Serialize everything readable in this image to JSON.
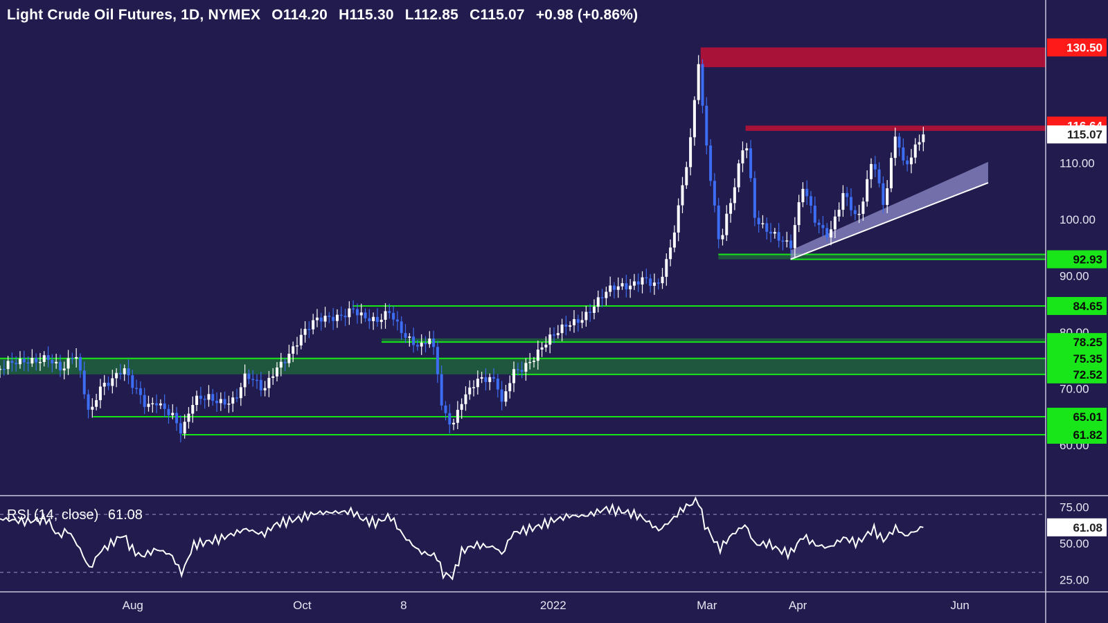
{
  "header": {
    "symbol": "Light Crude Oil Futures, 1D, NYMEX",
    "open": "O114.20",
    "high": "H115.30",
    "low": "L112.85",
    "close": "C115.07",
    "change": "+0.98 (+0.86%)"
  },
  "rsi_header": {
    "label": "RSI (14, close)",
    "value": "61.08"
  },
  "colors": {
    "background": "#211b4e",
    "up_candle": "#ffffff",
    "down_candle": "#3d6df2",
    "support": "#19e619",
    "resistance": "#ff1a1a",
    "resistance_zone": "#a81238",
    "support_zone": "#1f6b3a",
    "channel": "#8f8cc9"
  },
  "chart_data": [
    {
      "type": "candlestick",
      "title": "Light Crude Oil Futures, 1D, NYMEX",
      "x_tick_labels": [
        "Aug",
        "Oct",
        "8",
        "2022",
        "Mar",
        "Apr",
        "Jun"
      ],
      "y_tick_labels": [
        "110.00",
        "100.00",
        "90.00",
        "80.00",
        "70.00",
        "60.00"
      ],
      "y_ticks": [
        110,
        100,
        90,
        80,
        70,
        60
      ],
      "x_range": [
        0,
        100
      ],
      "ylim": [
        52,
        134
      ],
      "last_price": 115.07,
      "price_tags": [
        {
          "value": 130.5,
          "label": "130.50",
          "kind": "resistance"
        },
        {
          "value": 116.64,
          "label": "116.64",
          "kind": "resistance"
        },
        {
          "value": 115.07,
          "label": "115.07",
          "kind": "last"
        },
        {
          "value": 92.93,
          "label": "92.93",
          "kind": "support"
        },
        {
          "value": 84.65,
          "label": "84.65",
          "kind": "support"
        },
        {
          "value": 78.25,
          "label": "78.25",
          "kind": "support"
        },
        {
          "value": 75.35,
          "label": "75.35",
          "kind": "support"
        },
        {
          "value": 72.52,
          "label": "72.52",
          "kind": "support"
        },
        {
          "value": 65.01,
          "label": "65.01",
          "kind": "support"
        },
        {
          "value": 61.82,
          "label": "61.82",
          "kind": "support"
        }
      ],
      "resistance_zones": [
        {
          "from_x": 67,
          "y_top": 130.5,
          "y_bottom": 127.0
        },
        {
          "from_x": 71.3,
          "y_top": 116.64,
          "y_bottom": 115.7
        }
      ],
      "support_lines": [
        {
          "from_x": 68.7,
          "value": 93.8
        },
        {
          "from_x": 75.6,
          "value": 92.93
        },
        {
          "from_x": 33.7,
          "value": 84.65
        },
        {
          "from_x": 36.5,
          "value": 78.25
        },
        {
          "from_x": 0,
          "value": 75.35
        },
        {
          "from_x": 48.9,
          "value": 72.52
        },
        {
          "from_x": 8.9,
          "value": 65.01
        },
        {
          "from_x": 17.4,
          "value": 61.82
        }
      ],
      "support_zones": [
        {
          "from_x": 0,
          "y_top": 75.35,
          "y_bottom": 72.52
        },
        {
          "from_x": 68.7,
          "y_top": 93.8,
          "y_bottom": 92.93
        },
        {
          "from_x": 36.5,
          "y_top": 78.9,
          "y_bottom": 78.25
        }
      ],
      "channel": {
        "x1": 75.6,
        "y1_low": 92.93,
        "y1_high": 94.5,
        "x2": 94.5,
        "y2_low": 106.5,
        "y2_high": 110.2
      },
      "price_path": [
        [
          0,
          73.5
        ],
        [
          2,
          74.0
        ],
        [
          4.5,
          76.5
        ],
        [
          6,
          73.0
        ],
        [
          7.2,
          75.5
        ],
        [
          8.6,
          65.01
        ],
        [
          9.5,
          71.0
        ],
        [
          11.8,
          73.3
        ],
        [
          12.6,
          70.0
        ],
        [
          14.0,
          66.5
        ],
        [
          15.0,
          68.3
        ],
        [
          16.4,
          66.2
        ],
        [
          17.4,
          61.82
        ],
        [
          18.5,
          67.0
        ],
        [
          20.0,
          68.5
        ],
        [
          22.5,
          68.3
        ],
        [
          23.5,
          71.8
        ],
        [
          25.2,
          69.2
        ],
        [
          26.3,
          74.0
        ],
        [
          28.5,
          78.5
        ],
        [
          30.3,
          81.5
        ],
        [
          32.0,
          83.2
        ],
        [
          33.7,
          84.65
        ],
        [
          34.8,
          82.0
        ],
        [
          36.0,
          81.0
        ],
        [
          37.3,
          84.0
        ],
        [
          38.6,
          80.5
        ],
        [
          40.2,
          77.0
        ],
        [
          41.2,
          78.25
        ],
        [
          41.8,
          73.0
        ],
        [
          42.3,
          65.5
        ],
        [
          43.3,
          64.0
        ],
        [
          44.2,
          69.0
        ],
        [
          45.5,
          71.5
        ],
        [
          47.5,
          70.5
        ],
        [
          48.0,
          66.8
        ],
        [
          49.0,
          73.5
        ],
        [
          51.2,
          75.8
        ],
        [
          53.0,
          78.8
        ],
        [
          54.4,
          81.8
        ],
        [
          56.0,
          83.7
        ],
        [
          58.0,
          86.5
        ],
        [
          60.2,
          88.5
        ],
        [
          61.4,
          90.5
        ],
        [
          63.0,
          88.0
        ],
        [
          64.2,
          94.3
        ],
        [
          65.3,
          106.0
        ],
        [
          66.0,
          114.0
        ],
        [
          66.8,
          129.0
        ],
        [
          67.3,
          118.0
        ],
        [
          68.0,
          107.0
        ],
        [
          68.8,
          95.0
        ],
        [
          70.0,
          103.0
        ],
        [
          71.3,
          114.8
        ],
        [
          72.2,
          101.0
        ],
        [
          73.5,
          98.5
        ],
        [
          74.6,
          96.0
        ],
        [
          75.6,
          94.2
        ],
        [
          76.8,
          106.0
        ],
        [
          78.0,
          100.5
        ],
        [
          79.3,
          97.5
        ],
        [
          80.7,
          104.0
        ],
        [
          82.0,
          99.0
        ],
        [
          83.5,
          112.0
        ],
        [
          84.5,
          103.0
        ],
        [
          85.7,
          115.5
        ],
        [
          86.5,
          108.0
        ],
        [
          87.4,
          111.5
        ],
        [
          88.3,
          115.07
        ]
      ]
    },
    {
      "type": "line",
      "title": "RSI (14, close)",
      "y_tick_labels": [
        "75.00",
        "50.00",
        "25.00"
      ],
      "y_ticks": [
        75,
        50,
        25
      ],
      "ylim": [
        18,
        82
      ],
      "reference_lines": [
        70,
        30
      ],
      "last_value": 61.08,
      "last_value_label": "61.08",
      "values_path": [
        [
          0,
          67
        ],
        [
          2.5,
          65
        ],
        [
          4.5,
          67
        ],
        [
          5.5,
          55
        ],
        [
          6.5,
          59
        ],
        [
          7.5,
          48
        ],
        [
          8.6,
          32
        ],
        [
          9.5,
          44
        ],
        [
          11.8,
          56
        ],
        [
          12.6,
          46
        ],
        [
          13.5,
          41
        ],
        [
          15.0,
          46
        ],
        [
          16.4,
          42
        ],
        [
          17.4,
          29
        ],
        [
          18.5,
          49
        ],
        [
          21.0,
          53
        ],
        [
          23.5,
          60
        ],
        [
          25.2,
          56
        ],
        [
          26.3,
          63
        ],
        [
          28.5,
          67
        ],
        [
          30.3,
          71
        ],
        [
          33.7,
          72
        ],
        [
          34.8,
          66
        ],
        [
          36.0,
          64
        ],
        [
          37.3,
          69
        ],
        [
          38.6,
          55
        ],
        [
          40.2,
          44
        ],
        [
          41.8,
          41
        ],
        [
          42.3,
          29
        ],
        [
          43.3,
          27
        ],
        [
          44.2,
          45
        ],
        [
          45.5,
          49
        ],
        [
          47.5,
          47
        ],
        [
          48.0,
          42
        ],
        [
          49.0,
          57
        ],
        [
          51.2,
          61
        ],
        [
          53.0,
          66
        ],
        [
          54.4,
          69
        ],
        [
          56.0,
          69
        ],
        [
          58.0,
          74
        ],
        [
          60.2,
          71
        ],
        [
          61.4,
          68
        ],
        [
          63.0,
          59
        ],
        [
          64.2,
          66
        ],
        [
          65.3,
          74
        ],
        [
          66.8,
          80
        ],
        [
          67.3,
          64
        ],
        [
          68.8,
          46
        ],
        [
          70.0,
          56
        ],
        [
          71.3,
          63
        ],
        [
          72.2,
          49
        ],
        [
          73.5,
          50
        ],
        [
          74.6,
          45
        ],
        [
          75.6,
          43
        ],
        [
          76.8,
          55
        ],
        [
          78.0,
          49
        ],
        [
          79.3,
          47
        ],
        [
          80.7,
          54
        ],
        [
          82.0,
          50
        ],
        [
          83.5,
          60
        ],
        [
          84.5,
          52
        ],
        [
          85.7,
          61
        ],
        [
          86.5,
          55
        ],
        [
          88.3,
          61.08
        ]
      ]
    }
  ]
}
